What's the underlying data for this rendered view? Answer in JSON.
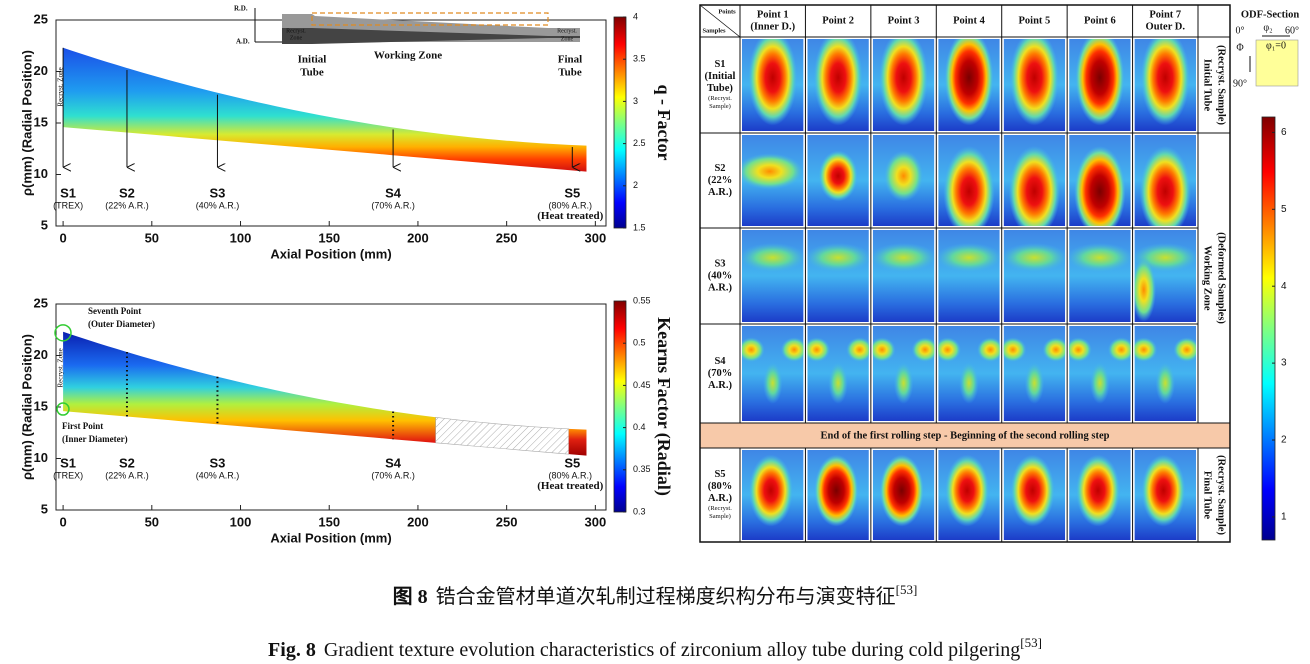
{
  "plots": [
    {
      "ylabel": "ρ(mm) (Radial Position)",
      "xlabel": "Axial Position (mm)",
      "xlim": [
        -4,
        306
      ],
      "ylim": [
        5,
        25
      ],
      "xticks": [
        0,
        50,
        100,
        150,
        200,
        250,
        300
      ],
      "yticks": [
        5,
        10,
        15,
        20,
        25
      ],
      "colorbar": {
        "label": "q - Factor",
        "lim": [
          1.5,
          4
        ],
        "ticks": [
          1.5,
          2,
          2.5,
          3,
          3.5,
          4
        ]
      },
      "zone_label": "Recryst. Zone",
      "stations": [
        {
          "name": "S1",
          "notes": [
            "(TREX)"
          ],
          "x": 0
        },
        {
          "name": "S2",
          "notes": [
            "(22% A.R.)"
          ],
          "x": 36
        },
        {
          "name": "S3",
          "notes": [
            "(40% A.R.)"
          ],
          "x": 87
        },
        {
          "name": "S4",
          "notes": [
            "(70% A.R.)"
          ],
          "x": 186
        },
        {
          "name": "S5",
          "notes": [
            "(80% A.R.)",
            "(Heat treated)"
          ],
          "x": 287
        }
      ]
    },
    {
      "ylabel": "ρ(mm) (Radial Position)",
      "xlabel": "Axial Position (mm)",
      "xlim": [
        -4,
        306
      ],
      "ylim": [
        5,
        25
      ],
      "xticks": [
        0,
        50,
        100,
        150,
        200,
        250,
        300
      ],
      "yticks": [
        5,
        10,
        15,
        20,
        25
      ],
      "colorbar": {
        "label": "Kearns Factor (Radial)",
        "lim": [
          0.3,
          0.55
        ],
        "ticks": [
          0.3,
          0.35,
          0.4,
          0.45,
          0.5,
          0.55
        ]
      },
      "zone_label": "Recryst. Zone",
      "annotations": [
        "Seventh Point",
        "(Outer Diameter)",
        "First Point",
        "(Inner Diameter)"
      ],
      "stations": [
        {
          "name": "S1",
          "notes": [
            "(TREX)"
          ],
          "x": 0
        },
        {
          "name": "S2",
          "notes": [
            "(22% A.R.)"
          ],
          "x": 36
        },
        {
          "name": "S3",
          "notes": [
            "(40% A.R.)"
          ],
          "x": 87
        },
        {
          "name": "S4",
          "notes": [
            "(70% A.R.)"
          ],
          "x": 186
        },
        {
          "name": "S5",
          "notes": [
            "(80% A.R.)",
            "(Heat treated)"
          ],
          "x": 287
        }
      ]
    }
  ],
  "inset": {
    "rd": "R.D.",
    "ad": "A.D.",
    "zone_left": [
      "Recryst.",
      "Zone"
    ],
    "initial": [
      "Initial",
      "Tube"
    ],
    "working": "Working Zone",
    "final": [
      "Final",
      "Tube"
    ],
    "zone_right": [
      "Recryst.",
      "Zone"
    ]
  },
  "odf": {
    "corner": [
      "Points",
      "Samples"
    ],
    "columns": [
      [
        "Point 1",
        "(Inner D.)"
      ],
      [
        "Point 2"
      ],
      [
        "Point 3"
      ],
      [
        "Point 4"
      ],
      [
        "Point 5"
      ],
      [
        "Point 6"
      ],
      [
        "Point 7",
        "Outer D."
      ]
    ],
    "rows": [
      {
        "lines": [
          "S1",
          "(Initial",
          "Tube)"
        ],
        "small": [
          "(Recryst.",
          "Sample)"
        ]
      },
      {
        "lines": [
          "S2",
          "(22%",
          "A.R.)"
        ]
      },
      {
        "lines": [
          "S3",
          "(40%",
          "A.R.)"
        ]
      },
      {
        "lines": [
          "S4",
          "(70%",
          "A.R.)"
        ]
      },
      {
        "lines": [
          "S5",
          "(80%",
          "A.R.)"
        ],
        "small": [
          "(Recryst.",
          "Sample)"
        ]
      }
    ],
    "groups": [
      [
        "Initial Tube",
        "(Recryst. Sample)"
      ],
      [
        "Working Zone",
        "(Deformed Samples)"
      ],
      [
        "Final Tube",
        "(Recryst. Sample)"
      ]
    ],
    "separator": "End of the first rolling step - Beginning of the second rolling step",
    "legend": {
      "title": "ODF-Section",
      "labels": [
        "0°",
        "φ₂",
        "60°",
        "Φ",
        "φ₁=0",
        "90°"
      ]
    },
    "colorbar": {
      "lim": [
        0.7,
        6.2
      ],
      "ticks": [
        1,
        2,
        3,
        4,
        5,
        6
      ]
    }
  },
  "caption": {
    "zh": {
      "label": "图 8",
      "text": "锆合金管材单道次轧制过程梯度织构分布与演变特征",
      "ref": "[53]"
    },
    "en": {
      "label": "Fig. 8",
      "text": "Gradient texture evolution characteristics of zirconium alloy tube during cold pilgering",
      "ref": "[53]"
    }
  }
}
